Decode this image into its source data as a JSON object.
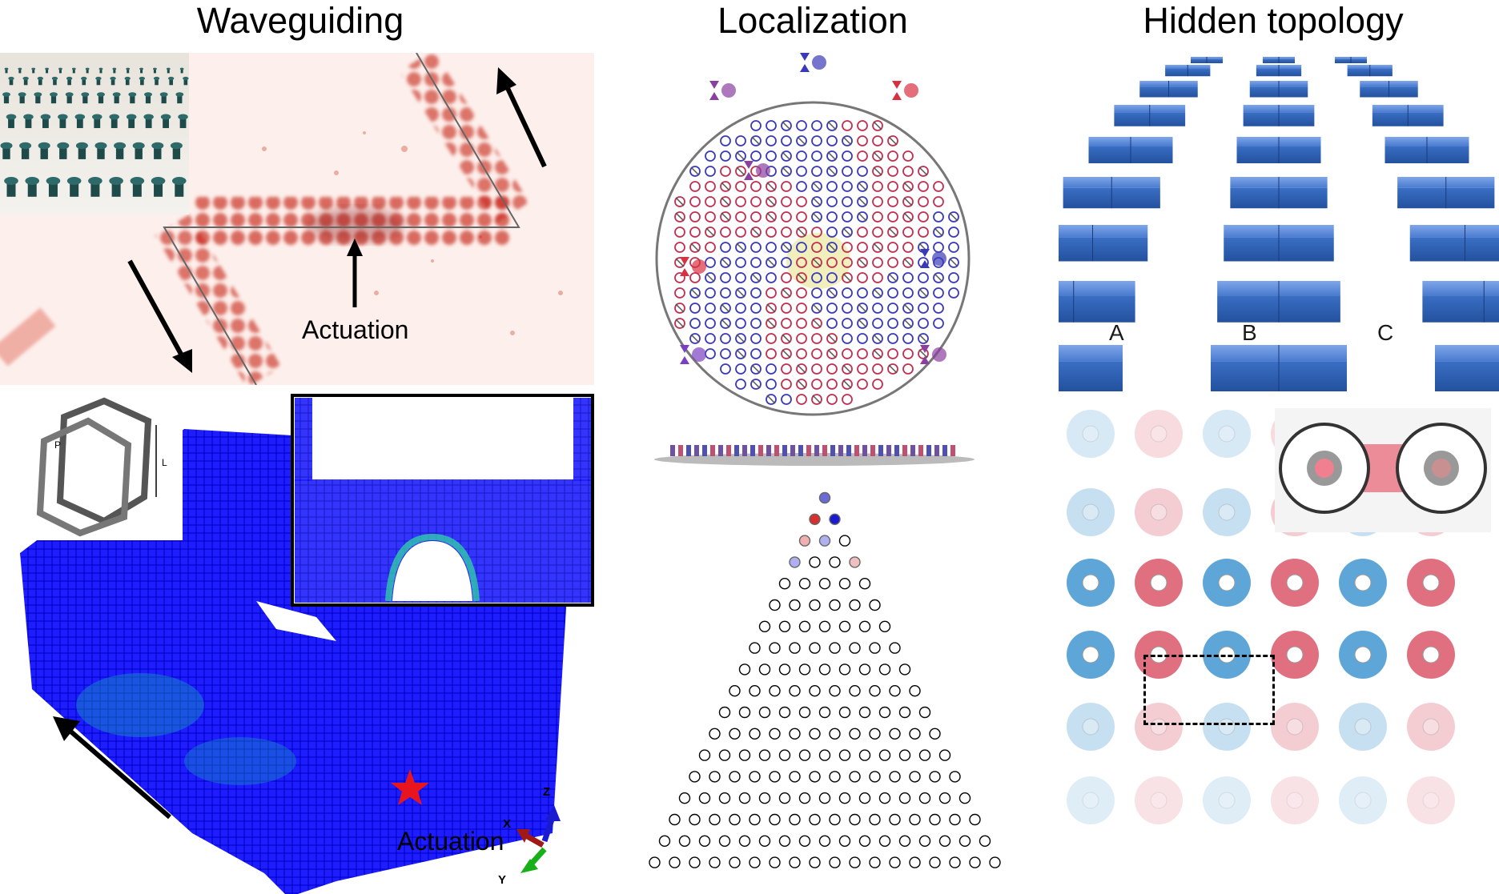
{
  "titles": {
    "col1": "Waveguiding",
    "col2": "Localization",
    "col3": "Hidden topology"
  },
  "panel_a": {
    "actuation_label": "Actuation"
  },
  "panel_c": {
    "actuation_label": "Actuation",
    "unit_cell_labels": {
      "p": "P",
      "l": "L"
    },
    "axis_labels": {
      "x": "X",
      "y": "Y",
      "z": "Z"
    }
  },
  "panel_e": {
    "block_labels": [
      "A",
      "B",
      "C"
    ]
  },
  "colors": {
    "heatmap": "#c8281e",
    "lattice_blue": "#1a1aff",
    "red_site": "#e0303a",
    "blue_site": "#2a2ad6",
    "block_blue": "#3a6fc4",
    "pink_disk": "#e07080",
    "cyan_disk": "#5fa6d8"
  },
  "triangle_highlight": {
    "rows_shown": 18,
    "top_sites": [
      {
        "row": 0,
        "col": 0,
        "color": "#6b6bd6"
      },
      {
        "row": 1,
        "col": 0,
        "color": "#d63030"
      },
      {
        "row": 1,
        "col": 1,
        "color": "#1a1ad0"
      },
      {
        "row": 2,
        "col": 0,
        "color": "#f0b0b0"
      },
      {
        "row": 2,
        "col": 1,
        "color": "#b0b0f0"
      },
      {
        "row": 3,
        "col": 0,
        "color": "#b0b0f0"
      },
      {
        "row": 3,
        "col": 3,
        "color": "#f0c0c0"
      }
    ]
  }
}
